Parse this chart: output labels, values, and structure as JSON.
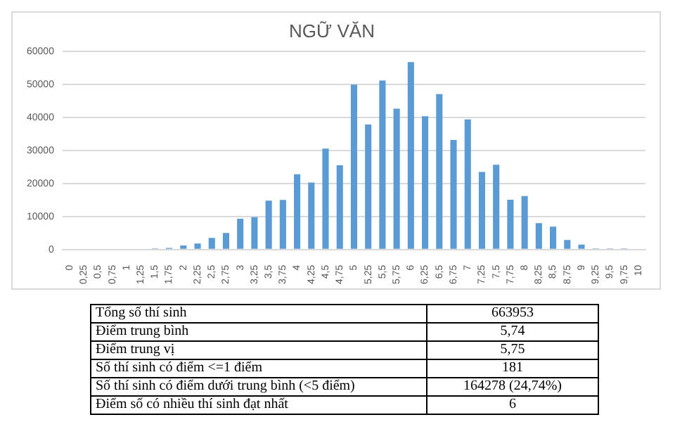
{
  "chart_data": {
    "type": "bar",
    "title": "NGỮ VĂN",
    "categories": [
      "0",
      "0,25",
      "0,5",
      "0,75",
      "1",
      "1,25",
      "1,5",
      "1,75",
      "2",
      "2,25",
      "2,5",
      "2,75",
      "3",
      "3,25",
      "3,5",
      "3,75",
      "4",
      "4,25",
      "4,5",
      "4,75",
      "5",
      "5,25",
      "5,5",
      "5,75",
      "6",
      "6,25",
      "6,5",
      "6,75",
      "7",
      "7,25",
      "7,5",
      "7,75",
      "8",
      "8,25",
      "8,5",
      "8,75",
      "9",
      "9,25",
      "9,5",
      "9,75",
      "10"
    ],
    "values": [
      200,
      200,
      200,
      200,
      200,
      200,
      300,
      500,
      1200,
      1800,
      3500,
      5000,
      9300,
      9800,
      14800,
      15000,
      22800,
      20300,
      30600,
      25500,
      50000,
      37900,
      51200,
      42700,
      56800,
      40400,
      47100,
      33200,
      39400,
      23500,
      25700,
      15100,
      16200,
      8000,
      6900,
      2900,
      1500,
      300,
      300,
      300,
      0
    ],
    "color": "#5b9bd5",
    "ylim": [
      0,
      60000
    ],
    "yticks": [
      0,
      10000,
      20000,
      30000,
      40000,
      50000,
      60000
    ],
    "grid": "y",
    "legend": false,
    "annotations": [
      "Tổng số thí sinh",
      "663953",
      "Điểm trung bình",
      "5,74",
      "Điểm trung vị",
      "5,75",
      "Số thí sinh có điểm <=1 điểm",
      "181",
      "Số thí sinh có điểm dưới trung bình (<5 điểm)",
      "164278 (24,74%)",
      "Điểm số có nhiều thí sinh đạt nhất",
      "6"
    ]
  }
}
